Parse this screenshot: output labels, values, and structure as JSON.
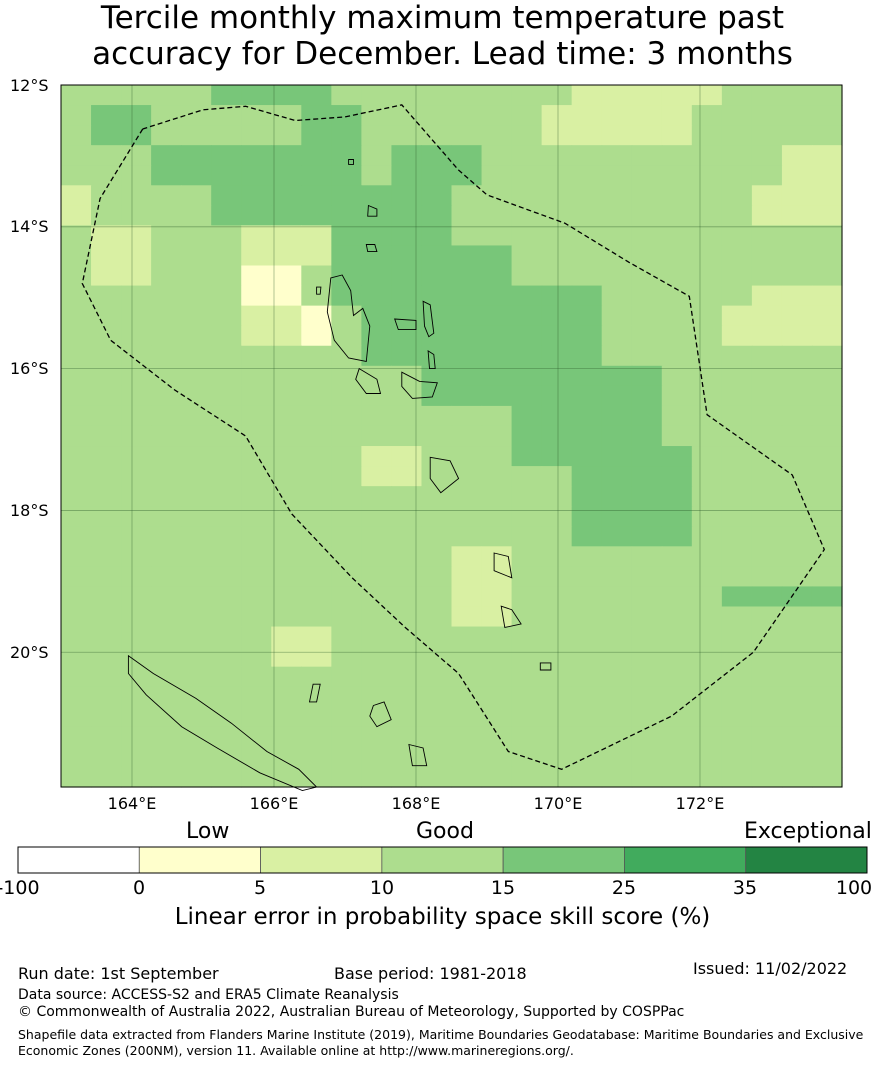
{
  "title": {
    "line1": "Tercile monthly maximum temperature past",
    "line2": "accuracy for December. Lead time: 3 months"
  },
  "map": {
    "lat_labels": [
      "12°S",
      "14°S",
      "16°S",
      "18°S",
      "20°S"
    ],
    "lon_labels": [
      "164°E",
      "166°E",
      "168°E",
      "170°E",
      "172°E"
    ],
    "lon_range": [
      163,
      174
    ],
    "lat_range": [
      -12,
      -21.9
    ],
    "grid_cells": [
      "33333444433333333222223333",
      "34433333443333332222233333",
      "34433333443333332222233333",
      "33344444443444333333333322",
      "33344444443444333333333322",
      "23333444444443333333333222",
      "23333444444443333333333222",
      "32233322244443333333333333",
      "32233322244444433333333333",
      "32233311344444433333333333",
      "33333311344444444433333222",
      "33333322134444444433332222",
      "33333322134444444433332222",
      "33333333334444444433333333",
      "33333333333344444444333333",
      "33333333333344444444333333",
      "33333333333333344444333333",
      "33333333333333344444333333",
      "33333333332233344444433333",
      "33333333332233333444433333",
      "33333333333333333444433333",
      "33333333333333333444433333",
      "33333333333333333444433333",
      "33333333333332233333333333",
      "33333333333332233333333333",
      "33333333333332233333334444",
      "33333333333332233333333333",
      "33333332233333333333333333",
      "33333332233333333333333333",
      "33333333333333333333333333",
      "33333333333333333333333333",
      "33333333333333333333333333",
      "33333333333333333333333333",
      "33333333333333333333333333",
      "33333333333333333333333333"
    ],
    "eez_boundary": [
      [
        164.15,
        -12.62
      ],
      [
        163.55,
        -13.6
      ],
      [
        163.3,
        -14.8
      ],
      [
        163.7,
        -15.6
      ],
      [
        164.6,
        -16.3
      ],
      [
        165.6,
        -16.95
      ],
      [
        166.25,
        -18.05
      ],
      [
        167.1,
        -18.95
      ],
      [
        167.85,
        -19.65
      ],
      [
        168.6,
        -20.3
      ],
      [
        169.3,
        -21.4
      ],
      [
        170.05,
        -21.65
      ],
      [
        171.6,
        -20.9
      ],
      [
        172.75,
        -20.0
      ],
      [
        173.75,
        -18.55
      ],
      [
        173.3,
        -17.5
      ],
      [
        172.1,
        -16.65
      ],
      [
        171.85,
        -14.98
      ],
      [
        171.0,
        -14.5
      ],
      [
        170.1,
        -13.95
      ],
      [
        169.0,
        -13.55
      ],
      [
        168.6,
        -13.2
      ],
      [
        167.8,
        -12.28
      ],
      [
        167.0,
        -12.45
      ],
      [
        166.3,
        -12.5
      ],
      [
        165.6,
        -12.3
      ],
      [
        165.0,
        -12.35
      ],
      [
        164.15,
        -12.62
      ]
    ],
    "islands": [
      [
        [
          166.8,
          -14.72
        ],
        [
          166.96,
          -14.68
        ],
        [
          167.08,
          -14.9
        ],
        [
          167.12,
          -15.25
        ],
        [
          167.25,
          -15.15
        ],
        [
          167.35,
          -15.4
        ],
        [
          167.3,
          -15.9
        ],
        [
          167.05,
          -15.85
        ],
        [
          166.85,
          -15.6
        ],
        [
          166.75,
          -15.2
        ]
      ],
      [
        [
          167.8,
          -16.05
        ],
        [
          168.05,
          -16.18
        ],
        [
          168.3,
          -16.2
        ],
        [
          168.23,
          -16.4
        ],
        [
          167.95,
          -16.42
        ],
        [
          167.8,
          -16.25
        ]
      ],
      [
        [
          167.2,
          -16.0
        ],
        [
          167.45,
          -16.15
        ],
        [
          167.5,
          -16.35
        ],
        [
          167.3,
          -16.35
        ],
        [
          167.15,
          -16.15
        ]
      ],
      [
        [
          167.7,
          -15.3
        ],
        [
          168.0,
          -15.32
        ],
        [
          168.0,
          -15.45
        ],
        [
          167.75,
          -15.45
        ]
      ],
      [
        [
          168.1,
          -15.05
        ],
        [
          168.2,
          -15.1
        ],
        [
          168.25,
          -15.5
        ],
        [
          168.18,
          -15.55
        ],
        [
          168.12,
          -15.4
        ]
      ],
      [
        [
          168.17,
          -15.75
        ],
        [
          168.25,
          -15.8
        ],
        [
          168.27,
          -16.0
        ],
        [
          168.19,
          -16.0
        ]
      ],
      [
        [
          167.3,
          -14.25
        ],
        [
          167.42,
          -14.25
        ],
        [
          167.45,
          -14.35
        ],
        [
          167.32,
          -14.35
        ]
      ],
      [
        [
          167.33,
          -13.7
        ],
        [
          167.45,
          -13.75
        ],
        [
          167.45,
          -13.85
        ],
        [
          167.32,
          -13.85
        ]
      ],
      [
        [
          168.2,
          -17.25
        ],
        [
          168.48,
          -17.3
        ],
        [
          168.6,
          -17.55
        ],
        [
          168.35,
          -17.75
        ],
        [
          168.2,
          -17.55
        ]
      ],
      [
        [
          169.1,
          -18.6
        ],
        [
          169.3,
          -18.65
        ],
        [
          169.35,
          -18.95
        ],
        [
          169.1,
          -18.85
        ]
      ],
      [
        [
          169.2,
          -19.35
        ],
        [
          169.35,
          -19.4
        ],
        [
          169.48,
          -19.6
        ],
        [
          169.25,
          -19.65
        ]
      ],
      [
        [
          169.75,
          -20.15
        ],
        [
          169.9,
          -20.15
        ],
        [
          169.9,
          -20.25
        ],
        [
          169.75,
          -20.25
        ]
      ],
      [
        [
          166.55,
          -20.45
        ],
        [
          166.65,
          -20.45
        ],
        [
          166.6,
          -20.7
        ],
        [
          166.5,
          -20.7
        ]
      ],
      [
        [
          167.4,
          -20.75
        ],
        [
          167.55,
          -20.7
        ],
        [
          167.65,
          -20.95
        ],
        [
          167.45,
          -21.05
        ],
        [
          167.35,
          -20.9
        ]
      ],
      [
        [
          167.9,
          -21.3
        ],
        [
          168.1,
          -21.35
        ],
        [
          168.15,
          -21.6
        ],
        [
          167.95,
          -21.6
        ]
      ],
      [
        [
          166.6,
          -14.85
        ],
        [
          166.66,
          -14.85
        ],
        [
          166.65,
          -14.95
        ],
        [
          166.6,
          -14.95
        ]
      ],
      [
        [
          167.05,
          -13.05
        ],
        [
          167.12,
          -13.05
        ],
        [
          167.12,
          -13.12
        ],
        [
          167.05,
          -13.12
        ]
      ]
    ],
    "new_caledonia": [
      [
        163.95,
        -20.05
      ],
      [
        164.3,
        -20.3
      ],
      [
        164.9,
        -20.65
      ],
      [
        165.4,
        -21.0
      ],
      [
        165.9,
        -21.4
      ],
      [
        166.35,
        -21.65
      ],
      [
        166.6,
        -21.9
      ],
      [
        166.4,
        -21.95
      ],
      [
        165.8,
        -21.7
      ],
      [
        165.2,
        -21.35
      ],
      [
        164.7,
        -21.05
      ],
      [
        164.2,
        -20.6
      ],
      [
        163.95,
        -20.3
      ]
    ]
  },
  "colorbar": {
    "categories": [
      "Low",
      "Good",
      "Exceptional"
    ],
    "ticks": [
      "-100",
      "0",
      "5",
      "10",
      "15",
      "25",
      "35",
      "100"
    ],
    "colors": [
      "#ffffff",
      "#ffffcc",
      "#d9f0a3",
      "#addd8e",
      "#78c679",
      "#41ab5d",
      "#238443"
    ],
    "label": "Linear error in probability space skill score (%)"
  },
  "footer": {
    "run_date": "Run date: 1st September",
    "base_period": "Base period: 1981-2018",
    "issued": "Issued: 11/02/2022",
    "data_source": "Data source: ACCESS-S2 and ERA5 Climate Reanalysis",
    "copyright": "© Commonwealth of Australia 2022, Australian Bureau of Meteorology, Supported by COSPPac",
    "shapefile_note": "Shapefile data extracted from Flanders Marine Institute (2019), Maritime Boundaries Geodatabase: Maritime Boundaries and Exclusive Economic Zones (200NM), version 11. Available online at http://www.marineregions.org/."
  }
}
